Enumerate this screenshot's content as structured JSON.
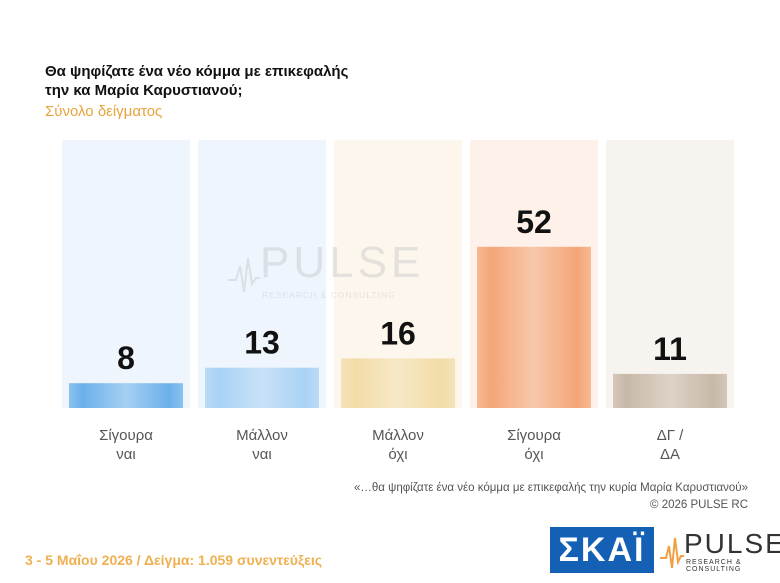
{
  "header": {
    "title_line1": "Θα ψηφίζατε ένα νέο κόμμα με επικεφαλής",
    "title_line2": "την κα Μαρία Καρυστιανού;",
    "subtitle": "Σύνολο δείγματος"
  },
  "chart_data": {
    "type": "bar",
    "categories": [
      [
        "Σίγουρα",
        "ναι"
      ],
      [
        "Μάλλον",
        "ναι"
      ],
      [
        "Μάλλον",
        "όχι"
      ],
      [
        "Σίγουρα",
        "όχι"
      ],
      [
        "ΔΓ /",
        "ΔΑ"
      ]
    ],
    "values": [
      8,
      13,
      16,
      52,
      11
    ],
    "colors": [
      "#6bb0ea",
      "#a9d2f5",
      "#f2dca8",
      "#f4a677",
      "#c8b8a8"
    ],
    "column_bg_colors": [
      "#eef5fc",
      "#eef5fc",
      "#fcf6ec",
      "#fdf1ea",
      "#f7f3ef"
    ],
    "ylim": [
      0,
      60
    ]
  },
  "watermark": {
    "name": "PULSE",
    "sub": "RESEARCH & CONSULTING"
  },
  "notes": {
    "quote": "«…θα ψηφίζατε ένα νέο κόμμα με επικεφαλής την κυρία Μαρία Καρυστιανού»",
    "copyright": "©  2026  PULSE RC"
  },
  "footer": {
    "text": "3 - 5  Μαΐου 2026  /  Δείγμα:  1.059 συνεντεύξεις"
  },
  "logos": {
    "skai": "ΣΚΑΪ",
    "pulse": "PULSE",
    "pulse_sub": "RESEARCH & CONSULTING"
  }
}
